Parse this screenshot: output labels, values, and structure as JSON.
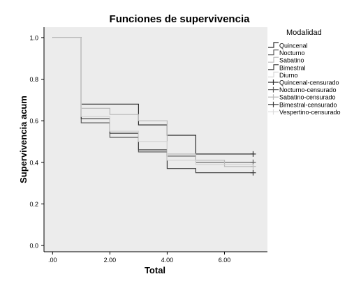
{
  "chart_data": {
    "type": "line",
    "subtype": "step",
    "title": "Funciones de supervivencia",
    "xlabel": "Total",
    "ylabel": "Supervivencia acum",
    "xlim": [
      -0.3,
      7.5
    ],
    "ylim": [
      -0.03,
      1.05
    ],
    "xticks": [
      0,
      2,
      4,
      6
    ],
    "xtick_labels": [
      ".00",
      "2.00",
      "4.00",
      "6.00"
    ],
    "yticks": [
      0,
      0.2,
      0.4,
      0.6,
      0.8,
      1.0
    ],
    "ytick_labels": [
      "0.0",
      "0.2",
      "0.4",
      "0.6",
      "0.8",
      "1.0"
    ],
    "grid": false,
    "plot_background": "#ececec",
    "legend_position": "right",
    "legend_title": "Modalidad",
    "series": [
      {
        "name": "Quincenal",
        "color": "#2b2b2b",
        "x": [
          0,
          1,
          1,
          3,
          3,
          4,
          4,
          5,
          5,
          7
        ],
        "y": [
          1.0,
          1.0,
          0.68,
          0.68,
          0.58,
          0.58,
          0.53,
          0.53,
          0.44,
          0.44
        ]
      },
      {
        "name": "Nocturno",
        "color": "#5a5a5a",
        "x": [
          0,
          1,
          1,
          2,
          2,
          3,
          3,
          4,
          4,
          5,
          5,
          7
        ],
        "y": [
          1.0,
          1.0,
          0.59,
          0.59,
          0.52,
          0.52,
          0.45,
          0.45,
          0.43,
          0.43,
          0.4,
          0.4
        ]
      },
      {
        "name": "Sabatino",
        "color": "#b8b8b8",
        "x": [
          0,
          1,
          1,
          2,
          2,
          3,
          3,
          4,
          4,
          5,
          5,
          6,
          6,
          7
        ],
        "y": [
          1.0,
          1.0,
          0.66,
          0.66,
          0.63,
          0.63,
          0.6,
          0.6,
          0.44,
          0.44,
          0.41,
          0.41,
          0.38,
          0.38
        ]
      },
      {
        "name": "Bimestral",
        "color": "#3c3c3c",
        "x": [
          0,
          1,
          1,
          2,
          2,
          3,
          3,
          4,
          4,
          5,
          5,
          7
        ],
        "y": [
          1.0,
          1.0,
          0.61,
          0.61,
          0.54,
          0.54,
          0.46,
          0.46,
          0.37,
          0.37,
          0.35,
          0.35
        ]
      },
      {
        "name": "Diurno",
        "color": "#d2d2d2",
        "x": [
          0,
          1,
          1,
          2,
          2,
          3,
          3,
          4,
          4,
          5,
          5,
          7
        ],
        "y": [
          1.0,
          1.0,
          0.62,
          0.62,
          0.55,
          0.55,
          0.5,
          0.5,
          0.41,
          0.41,
          0.39,
          0.39
        ]
      }
    ],
    "censored": [
      {
        "name": "Quincenal-censurado",
        "color": "#2b2b2b",
        "x": [
          7
        ],
        "y": [
          0.44
        ]
      },
      {
        "name": "Nocturno-censurado",
        "color": "#5a5a5a",
        "x": [
          7
        ],
        "y": [
          0.4
        ]
      },
      {
        "name": "Sabatino-censurado",
        "color": "#b8b8b8",
        "x": [
          7
        ],
        "y": [
          0.38
        ]
      },
      {
        "name": "Bimestral-censurado",
        "color": "#3c3c3c",
        "x": [
          7
        ],
        "y": [
          0.35
        ]
      },
      {
        "name": "Vespertino-censurado",
        "color": "#dcdcdc",
        "x": [],
        "y": []
      }
    ],
    "legend_entries": [
      {
        "label": "Quincenal",
        "marker": "step",
        "color": "#2b2b2b"
      },
      {
        "label": "Nocturno",
        "marker": "step",
        "color": "#5a5a5a"
      },
      {
        "label": "Sabatino",
        "marker": "step",
        "color": "#b8b8b8"
      },
      {
        "label": "Bimestral",
        "marker": "step",
        "color": "#3c3c3c"
      },
      {
        "label": "Diurno",
        "marker": "step",
        "color": "#d8d8d8"
      },
      {
        "label": "Quincenal-censurado",
        "marker": "plus",
        "color": "#2b2b2b"
      },
      {
        "label": "Nocturno-censurado",
        "marker": "plus",
        "color": "#5a5a5a"
      },
      {
        "label": "Sabatino-censurado",
        "marker": "plus",
        "color": "#b8b8b8"
      },
      {
        "label": "Bimestral-censurado",
        "marker": "plus",
        "color": "#3c3c3c"
      },
      {
        "label": "Vespertino-censurado",
        "marker": "plus",
        "color": "#dcdcdc"
      }
    ]
  }
}
